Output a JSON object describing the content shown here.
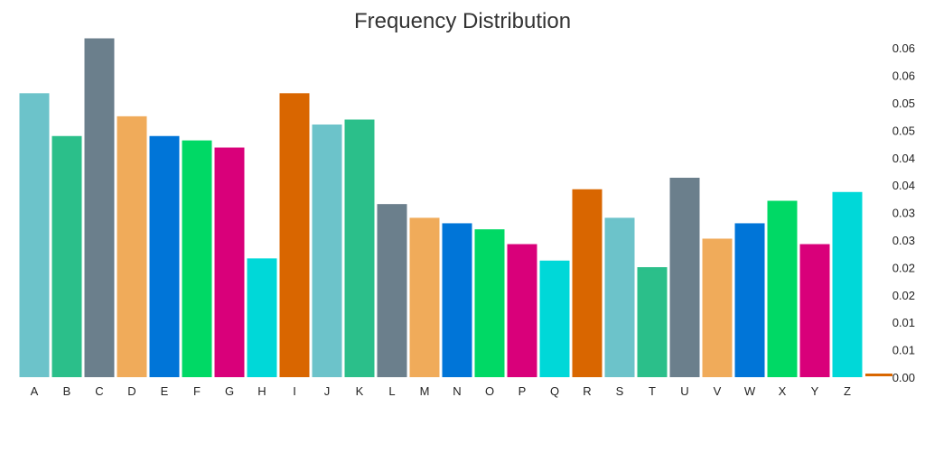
{
  "chart_data": {
    "type": "bar",
    "title": "Frequency Distribution",
    "xlabel": "",
    "ylabel": "",
    "ylim": [
      0,
      0.0615
    ],
    "y_axis_side": "right",
    "y_tick_values": [
      0.0,
      0.005,
      0.01,
      0.015,
      0.02,
      0.025,
      0.03,
      0.035,
      0.04,
      0.045,
      0.05,
      0.055,
      0.06
    ],
    "y_tick_labels": [
      "0.00",
      "0.01",
      "0.01",
      "0.02",
      "0.02",
      "0.03",
      "0.03",
      "0.04",
      "0.04",
      "0.05",
      "0.05",
      "0.06",
      "0.06"
    ],
    "categories": [
      "A",
      "B",
      "C",
      "D",
      "E",
      "F",
      "G",
      "H",
      "I",
      "J",
      "K",
      "L",
      "M",
      "N",
      "O",
      "P",
      "Q",
      "R",
      "S",
      "T",
      "U",
      "V",
      "W",
      "X",
      "Y",
      "Z"
    ],
    "values": [
      0.0515,
      0.0437,
      0.0615,
      0.0473,
      0.0437,
      0.0429,
      0.0416,
      0.0214,
      0.0515,
      0.0458,
      0.0467,
      0.0313,
      0.0288,
      0.0278,
      0.0267,
      0.024,
      0.021,
      0.034,
      0.0288,
      0.0198,
      0.0361,
      0.025,
      0.0278,
      0.0319,
      0.024,
      0.0335
    ],
    "colors": [
      "#6cc3ca",
      "#2bbf8a",
      "#6b7f8c",
      "#f0ab5a",
      "#0075d8",
      "#00d965",
      "#d9007a",
      "#00d8d8",
      "#d96600",
      "#6cc3ca",
      "#2bbf8a",
      "#6b7f8c",
      "#f0ab5a",
      "#0075d8",
      "#00d965",
      "#d9007a",
      "#00d8d8",
      "#d96600",
      "#6cc3ca",
      "#2bbf8a",
      "#6b7f8c",
      "#f0ab5a",
      "#0075d8",
      "#00d965",
      "#d9007a",
      "#00d8d8"
    ],
    "legend": "none",
    "grid": false
  }
}
